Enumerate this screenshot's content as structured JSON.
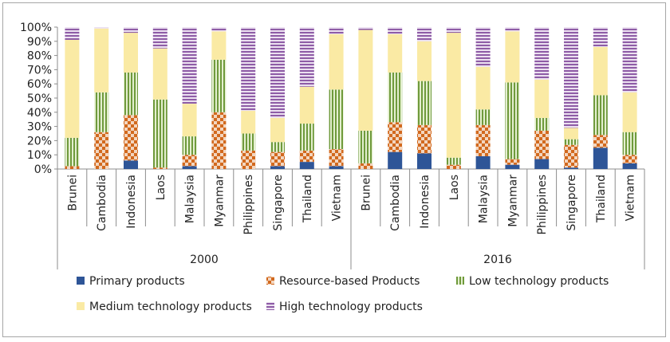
{
  "chart_data": {
    "type": "bar",
    "stacked": true,
    "percent": true,
    "title": "",
    "xlabel": "",
    "ylabel": "",
    "ylim": [
      0,
      100
    ],
    "y_ticks": [
      "0%",
      "10%",
      "20%",
      "30%",
      "40%",
      "50%",
      "60%",
      "70%",
      "80%",
      "90%",
      "100%"
    ],
    "groups": [
      {
        "label": "2000",
        "categories": [
          "Brunei",
          "Cambodia",
          "Indonesia",
          "Laos",
          "Malaysia",
          "Myanmar",
          "Philippines",
          "Singapore",
          "Thailand",
          "Vietnam"
        ]
      },
      {
        "label": "2016",
        "categories": [
          "Brunei",
          "Cambodia",
          "Indonesia",
          "Laos",
          "Malaysia",
          "Myanmar",
          "Philippines",
          "Singapore",
          "Thailand",
          "Vietnam"
        ]
      }
    ],
    "series": [
      {
        "name": "Primary products",
        "color": "#2e5597",
        "values": [
          0,
          0,
          6,
          0,
          2,
          0,
          0,
          2,
          5,
          2,
          0,
          12,
          11,
          0,
          9,
          3,
          7,
          1,
          15,
          4
        ]
      },
      {
        "name": "Resource-based Products",
        "color": "#e07b39",
        "values": [
          2,
          26,
          32,
          1,
          8,
          40,
          13,
          10,
          8,
          12,
          4,
          21,
          20,
          3,
          22,
          4,
          20,
          16,
          9,
          6
        ]
      },
      {
        "name": "Low technology products",
        "color": "#7fa34a",
        "values": [
          20,
          28,
          30,
          48,
          13,
          37,
          12,
          7,
          19,
          42,
          23,
          35,
          31,
          5,
          11,
          54,
          9,
          4,
          28,
          16
        ]
      },
      {
        "name": "Medium technology products",
        "color": "#f9e9a2",
        "values": [
          69,
          45,
          28,
          36,
          23,
          20,
          16,
          17,
          26,
          39,
          71,
          27,
          28,
          88,
          30,
          36,
          27,
          8,
          34,
          28
        ]
      },
      {
        "name": "High technology products",
        "color": "#8e5ca6",
        "values": [
          9,
          1,
          4,
          15,
          54,
          3,
          59,
          64,
          42,
          5,
          2,
          5,
          10,
          4,
          28,
          3,
          37,
          71,
          14,
          46
        ]
      }
    ],
    "legend_position": "bottom"
  }
}
